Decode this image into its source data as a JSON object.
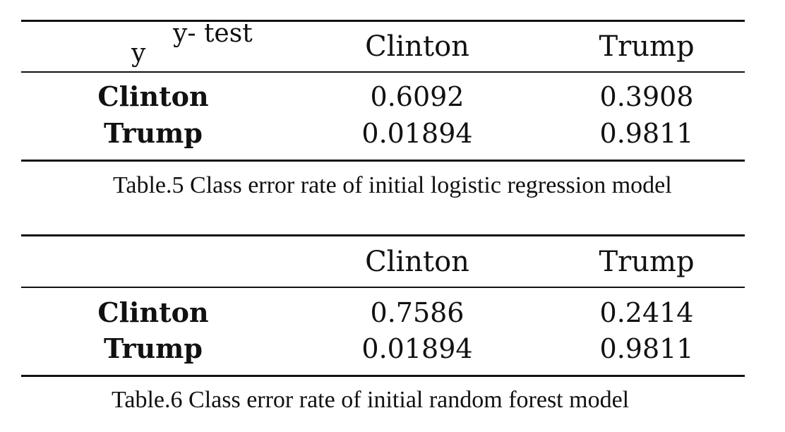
{
  "tables": [
    {
      "corner": {
        "top": "y- test",
        "bottom": "y"
      },
      "columns": [
        "Clinton",
        "Trump"
      ],
      "rows": [
        {
          "label": "Clinton",
          "values": [
            "0.6092",
            "0.3908"
          ]
        },
        {
          "label": "Trump",
          "values": [
            "0.01894",
            "0.9811"
          ]
        }
      ],
      "caption": "Table.5 Class error rate of initial logistic regression model"
    },
    {
      "columns": [
        "Clinton",
        "Trump"
      ],
      "rows": [
        {
          "label": "Clinton",
          "values": [
            "0.7586",
            "0.2414"
          ]
        },
        {
          "label": "Trump",
          "values": [
            "0.01894",
            "0.9811"
          ]
        }
      ],
      "caption": "Table.6 Class error rate of initial random forest model"
    }
  ]
}
